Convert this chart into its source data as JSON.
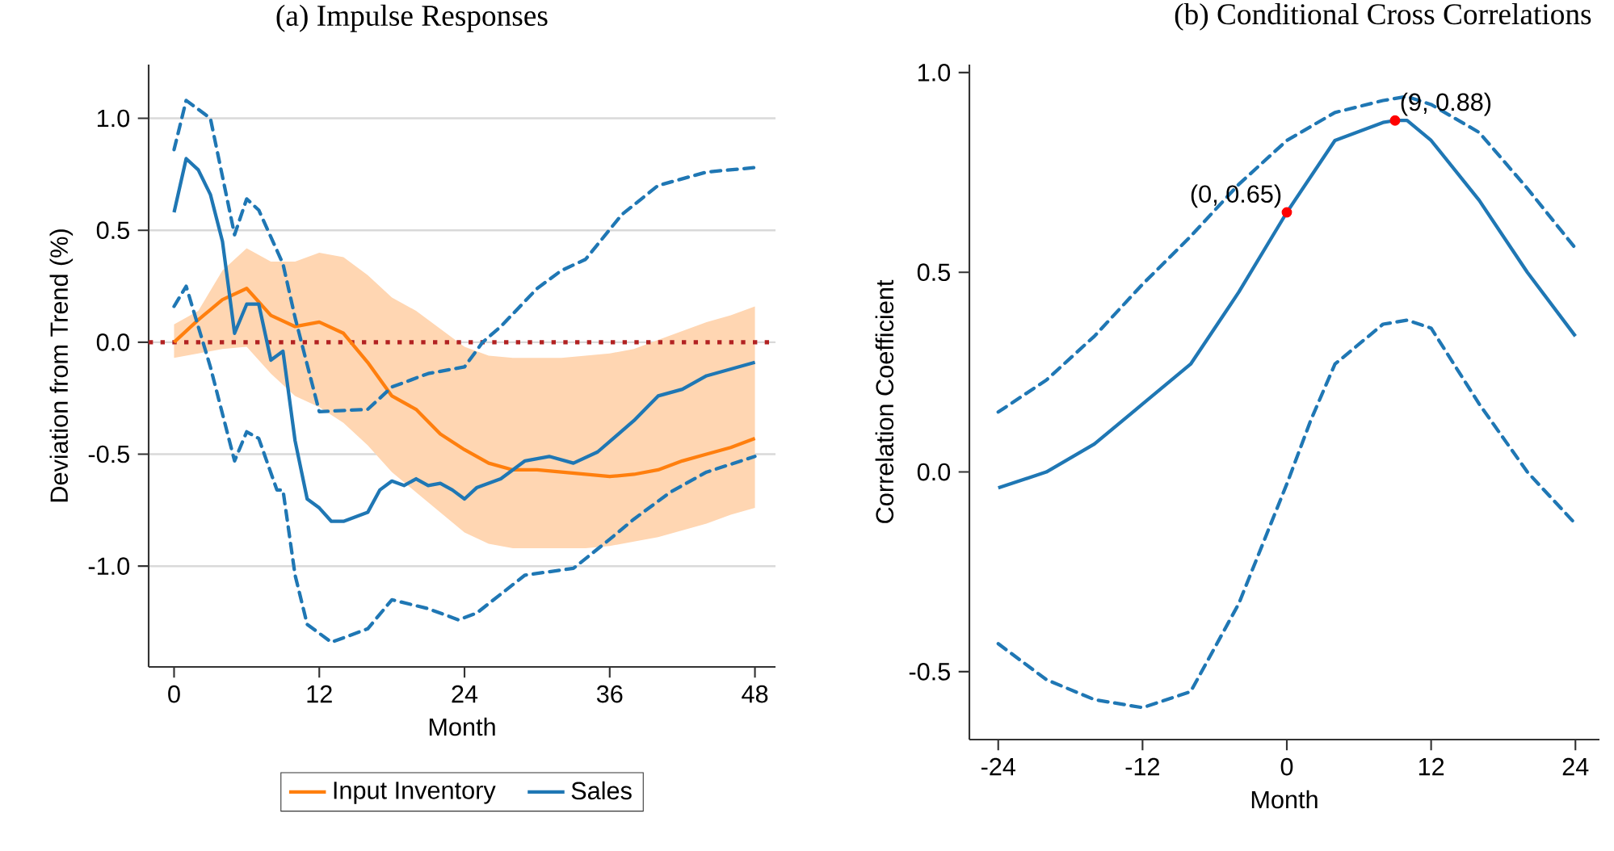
{
  "chart_data": [
    {
      "type": "line",
      "title": "(a) Impulse Responses",
      "xlabel": "Month",
      "ylabel": "Deviation from Trend (%)",
      "xlim": [
        -2.1,
        49.7
      ],
      "ylim": [
        -1.45,
        1.24
      ],
      "xticks": [
        0,
        12,
        24,
        36,
        48
      ],
      "yticks": [
        {
          "value": -1,
          "label": "-1.0"
        },
        {
          "value": -0.5,
          "label": "-0.5"
        },
        {
          "value": 0,
          "label": "0.0"
        },
        {
          "value": 0.5,
          "label": "0.5"
        },
        {
          "value": 1,
          "label": "1.0"
        }
      ],
      "grid": "y",
      "legend": "bottom",
      "ref_lines": [
        {
          "axis": "y",
          "value": 0,
          "color": "#b22222",
          "line_style": "dotted"
        }
      ],
      "series": [
        {
          "name": "Input Inventory",
          "color": "#ff7f0e",
          "line_style": "solid",
          "x": [
            0,
            2,
            4,
            6,
            8,
            10,
            12,
            14,
            16,
            18,
            20,
            22,
            24,
            26,
            28,
            30,
            32,
            34,
            36,
            38,
            40,
            42,
            44,
            46,
            48
          ],
          "values": [
            0,
            0.1,
            0.19,
            0.24,
            0.12,
            0.07,
            0.09,
            0.04,
            -0.09,
            -0.24,
            -0.3,
            -0.41,
            -0.48,
            -0.54,
            -0.57,
            -0.57,
            -0.58,
            -0.59,
            -0.6,
            -0.59,
            -0.57,
            -0.53,
            -0.5,
            -0.47,
            -0.43
          ],
          "lower": [
            -0.07,
            -0.05,
            -0.03,
            -0.02,
            -0.14,
            -0.24,
            -0.29,
            -0.36,
            -0.46,
            -0.58,
            -0.67,
            -0.76,
            -0.85,
            -0.9,
            -0.92,
            -0.92,
            -0.92,
            -0.92,
            -0.91,
            -0.89,
            -0.87,
            -0.84,
            -0.81,
            -0.77,
            -0.74
          ],
          "upper": [
            0.08,
            0.14,
            0.32,
            0.42,
            0.36,
            0.36,
            0.4,
            0.38,
            0.3,
            0.2,
            0.14,
            0.06,
            -0.02,
            -0.06,
            -0.07,
            -0.07,
            -0.07,
            -0.06,
            -0.05,
            -0.03,
            0.01,
            0.05,
            0.09,
            0.12,
            0.16
          ]
        },
        {
          "name": "Sales",
          "color": "#1f77b4",
          "line_style": "solid",
          "x": [
            0,
            1,
            2,
            3,
            4,
            5,
            6,
            7,
            8,
            9,
            10,
            11,
            12,
            13,
            14,
            16,
            17,
            18,
            19,
            20,
            21,
            22,
            23,
            24,
            25,
            27,
            29,
            31,
            33,
            35,
            38,
            40,
            42,
            44,
            48
          ],
          "values": [
            0.58,
            0.82,
            0.77,
            0.66,
            0.45,
            0.04,
            0.17,
            0.17,
            -0.08,
            -0.04,
            -0.44,
            -0.7,
            -0.74,
            -0.8,
            -0.8,
            -0.76,
            -0.66,
            -0.62,
            -0.64,
            -0.61,
            -0.64,
            -0.63,
            -0.66,
            -0.7,
            -0.65,
            -0.61,
            -0.53,
            -0.51,
            -0.54,
            -0.49,
            -0.35,
            -0.24,
            -0.21,
            -0.15,
            -0.09
          ]
        },
        {
          "color": "#1f77b4",
          "line_style": "dashed",
          "x": [
            0,
            1,
            3,
            5,
            6,
            7,
            9,
            10,
            12,
            16,
            18,
            21,
            24,
            25.5,
            27,
            30,
            32,
            34,
            37,
            40,
            44,
            48
          ],
          "values": [
            0.86,
            1.08,
            1.0,
            0.48,
            0.64,
            0.59,
            0.35,
            0.11,
            -0.31,
            -0.3,
            -0.2,
            -0.14,
            -0.11,
            0,
            0.07,
            0.24,
            0.32,
            0.37,
            0.57,
            0.7,
            0.76,
            0.78
          ]
        },
        {
          "color": "#1f77b4",
          "line_style": "dashed",
          "x": [
            0,
            1,
            3,
            5,
            6,
            7,
            8.5,
            9,
            10,
            11,
            13,
            16,
            18,
            21,
            23.5,
            25,
            29,
            33,
            36,
            38,
            41,
            44,
            48
          ],
          "values": [
            0.16,
            0.25,
            -0.11,
            -0.53,
            -0.4,
            -0.43,
            -0.66,
            -0.66,
            -1.04,
            -1.26,
            -1.34,
            -1.28,
            -1.15,
            -1.19,
            -1.24,
            -1.21,
            -1.04,
            -1.01,
            -0.88,
            -0.79,
            -0.67,
            -0.58,
            -0.51
          ]
        }
      ]
    },
    {
      "type": "line",
      "title": "(b) Conditional Cross Correlations",
      "xlabel": "Month",
      "ylabel": "Correlation Coefficient",
      "xlim": [
        -26.4,
        26
      ],
      "ylim": [
        -0.67,
        1.02
      ],
      "xticks": [
        -24,
        -12,
        0,
        12,
        24
      ],
      "yticks": [
        {
          "value": -0.5,
          "label": "-0.5"
        },
        {
          "value": 0,
          "label": "0.0"
        },
        {
          "value": 0.5,
          "label": "0.5"
        },
        {
          "value": 1,
          "label": "1.0"
        }
      ],
      "annotations": [
        {
          "text": "(0, 0.65)",
          "x": 0,
          "y": 0.65
        },
        {
          "text": "(9, 0.88)",
          "x": 9,
          "y": 0.88
        }
      ],
      "series": [
        {
          "color": "#1f77b4",
          "line_style": "solid",
          "x": [
            -24,
            -20,
            -16,
            -12,
            -8,
            -4,
            0,
            4,
            8,
            9,
            10,
            12,
            16,
            20,
            24
          ],
          "values": [
            -0.04,
            0.0,
            0.07,
            0.17,
            0.27,
            0.45,
            0.65,
            0.83,
            0.875,
            0.88,
            0.88,
            0.83,
            0.68,
            0.5,
            0.34
          ]
        },
        {
          "color": "#1f77b4",
          "line_style": "dashed",
          "x": [
            -24,
            -20,
            -16,
            -12,
            -8,
            -4,
            0,
            4,
            8,
            10,
            12,
            16,
            20,
            24
          ],
          "values": [
            0.15,
            0.23,
            0.34,
            0.47,
            0.59,
            0.72,
            0.83,
            0.9,
            0.93,
            0.94,
            0.92,
            0.85,
            0.71,
            0.56
          ]
        },
        {
          "color": "#1f77b4",
          "line_style": "dashed",
          "x": [
            -24,
            -20,
            -16,
            -12,
            -8,
            -4,
            0,
            2,
            4,
            8,
            10,
            12,
            16,
            20,
            24
          ],
          "values": [
            -0.43,
            -0.52,
            -0.57,
            -0.59,
            -0.55,
            -0.33,
            -0.03,
            0.13,
            0.27,
            0.37,
            0.38,
            0.36,
            0.17,
            0.0,
            -0.13
          ]
        },
        {
          "type": "scatter",
          "color": "#ff0000",
          "x": [
            0,
            9
          ],
          "values": [
            0.65,
            0.88
          ]
        }
      ]
    }
  ]
}
